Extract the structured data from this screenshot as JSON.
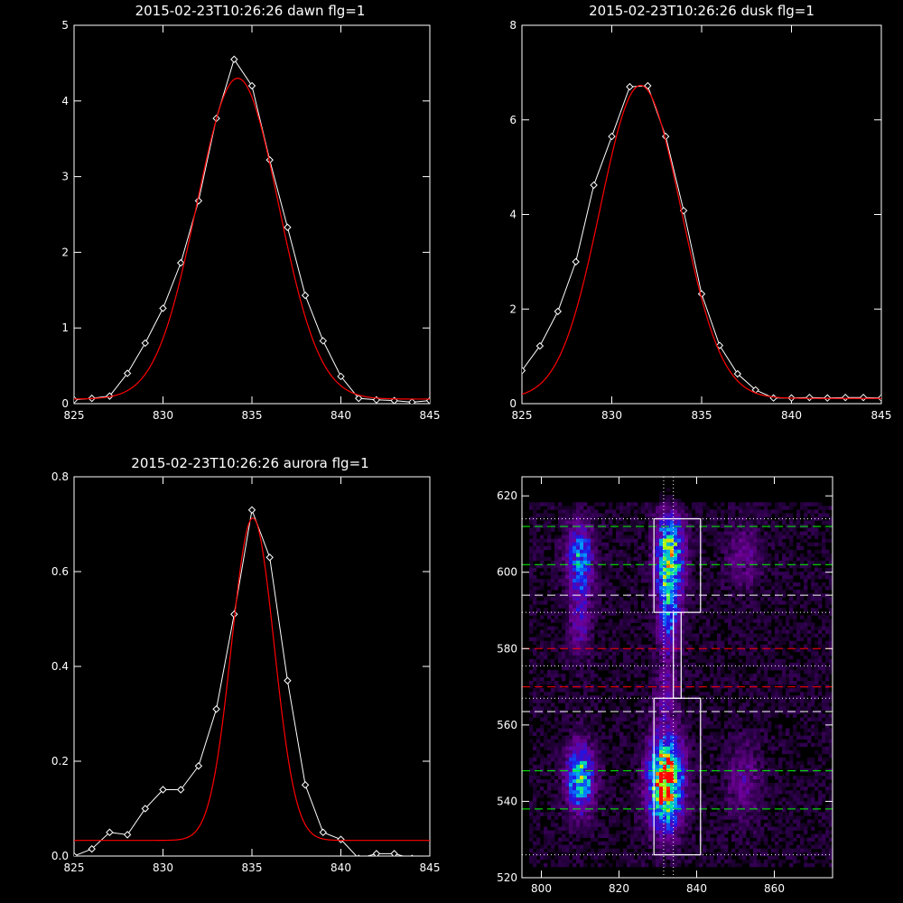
{
  "chart_data": [
    {
      "type": "line",
      "title": "2015-02-23T10:26:26 dawn flg=1",
      "xlabel": "",
      "ylabel": "",
      "xlim": [
        825,
        845
      ],
      "ylim": [
        0,
        5
      ],
      "xticks": [
        "825",
        "830",
        "835",
        "840",
        "845"
      ],
      "yticks": [
        "0",
        "1",
        "2",
        "3",
        "4",
        "5"
      ],
      "grid": false,
      "series": [
        {
          "color": "#ffffff",
          "marker": "diamond",
          "x": [
            825,
            826,
            827,
            828,
            829,
            830,
            831,
            832,
            833,
            834,
            835,
            836,
            837,
            838,
            839,
            840,
            841,
            842,
            843,
            844,
            845
          ],
          "y": [
            0.05,
            0.07,
            0.1,
            0.4,
            0.8,
            1.26,
            1.86,
            2.68,
            3.77,
            4.55,
            4.2,
            3.22,
            2.33,
            1.43,
            0.83,
            0.36,
            0.07,
            0.05,
            0.04,
            0.02,
            0.04
          ]
        },
        {
          "color": "#ff0000",
          "kind": "gaussian-fit",
          "amplitude": 4.24,
          "center": 834.2,
          "sigma": 2.3,
          "offset": 0.06
        }
      ]
    },
    {
      "type": "line",
      "title": "2015-02-23T10:26:26 dusk flg=1",
      "xlabel": "",
      "ylabel": "",
      "xlim": [
        825,
        845
      ],
      "ylim": [
        0,
        8
      ],
      "xticks": [
        "825",
        "830",
        "835",
        "840",
        "845"
      ],
      "yticks": [
        "0",
        "2",
        "4",
        "6",
        "8"
      ],
      "grid": false,
      "series": [
        {
          "color": "#ffffff",
          "marker": "diamond",
          "x": [
            825,
            826,
            827,
            828,
            829,
            830,
            831,
            832,
            833,
            834,
            835,
            836,
            837,
            838,
            839,
            840,
            841,
            842,
            843,
            844,
            845
          ],
          "y": [
            0.7,
            1.22,
            1.95,
            3.0,
            4.62,
            5.65,
            6.7,
            6.72,
            5.65,
            4.08,
            2.32,
            1.23,
            0.63,
            0.29,
            0.12,
            0.12,
            0.13,
            0.12,
            0.13,
            0.13,
            0.12
          ]
        },
        {
          "color": "#ff0000",
          "kind": "gaussian-fit",
          "amplitude": 6.62,
          "center": 831.6,
          "sigma": 2.25,
          "offset": 0.11
        }
      ]
    },
    {
      "type": "line",
      "title": "2015-02-23T10:26:26 aurora flg=1",
      "xlabel": "",
      "ylabel": "",
      "xlim": [
        825,
        845
      ],
      "ylim": [
        0,
        0.8
      ],
      "xticks": [
        "825",
        "830",
        "835",
        "840",
        "845"
      ],
      "yticks": [
        "0.0",
        "0.2",
        "0.4",
        "0.6",
        "0.8"
      ],
      "grid": false,
      "series": [
        {
          "color": "#ffffff",
          "marker": "diamond",
          "x": [
            825,
            826,
            827,
            828,
            829,
            830,
            831,
            832,
            833,
            834,
            835,
            836,
            837,
            838,
            839,
            840,
            841,
            842,
            843,
            844
          ],
          "y": [
            0.0,
            0.015,
            0.05,
            0.045,
            0.1,
            0.14,
            0.14,
            0.19,
            0.31,
            0.51,
            0.73,
            0.63,
            0.37,
            0.15,
            0.05,
            0.035,
            -0.005,
            0.005,
            0.005,
            -0.005
          ]
        },
        {
          "color": "#ff0000",
          "kind": "gaussian-fit",
          "amplitude": 0.68,
          "center": 835.05,
          "sigma": 1.2,
          "offset": 0.033
        }
      ]
    },
    {
      "type": "heatmap",
      "title": "",
      "xlabel": "",
      "ylabel": "",
      "xlim": [
        795,
        875
      ],
      "ylim": [
        520,
        625
      ],
      "xticks": [
        "800",
        "820",
        "840",
        "860"
      ],
      "yticks": [
        "520",
        "540",
        "560",
        "580",
        "600",
        "620"
      ],
      "colormap": "rainbow-on-black",
      "emission_blobs": [
        {
          "x": 810,
          "y": 546,
          "sx": 2.5,
          "sy": 6,
          "amp": 0.65
        },
        {
          "x": 832,
          "y": 545,
          "sx": 3,
          "sy": 8,
          "amp": 1.0
        },
        {
          "x": 810,
          "y": 604,
          "sx": 2.5,
          "sy": 6,
          "amp": 0.5
        },
        {
          "x": 833,
          "y": 605,
          "sx": 2.5,
          "sy": 7,
          "amp": 0.7
        },
        {
          "x": 833,
          "y": 590,
          "sx": 2,
          "sy": 8,
          "amp": 0.45
        },
        {
          "x": 810,
          "y": 588,
          "sx": 2,
          "sy": 7,
          "amp": 0.25
        },
        {
          "x": 852,
          "y": 545,
          "sx": 3,
          "sy": 7,
          "amp": 0.2
        },
        {
          "x": 852,
          "y": 604,
          "sx": 3,
          "sy": 6,
          "amp": 0.18
        },
        {
          "x": 832,
          "y": 568,
          "sx": 2,
          "sy": 6,
          "amp": 0.2
        }
      ],
      "hlines": [
        {
          "y": 612,
          "color": "#00ff00",
          "style": "dashed"
        },
        {
          "y": 602,
          "color": "#00ff00",
          "style": "dashed"
        },
        {
          "y": 594,
          "color": "#ffffff",
          "style": "dashed"
        },
        {
          "y": 580,
          "color": "#ff0000",
          "style": "dashed"
        },
        {
          "y": 570,
          "color": "#ff0000",
          "style": "dashed"
        },
        {
          "y": 563.5,
          "color": "#ffffff",
          "style": "dashed"
        },
        {
          "y": 548,
          "color": "#00ff00",
          "style": "dashed"
        },
        {
          "y": 538,
          "color": "#00ff00",
          "style": "dashed"
        },
        {
          "y": 614,
          "color": "#ffffff",
          "style": "dotted"
        },
        {
          "y": 589.5,
          "color": "#ffffff",
          "style": "dotted"
        },
        {
          "y": 575.5,
          "color": "#ffffff",
          "style": "dotted"
        },
        {
          "y": 567,
          "color": "#ffffff",
          "style": "dotted"
        },
        {
          "y": 526,
          "color": "#ffffff",
          "style": "dotted"
        }
      ],
      "vlines": [
        {
          "x": 831.5,
          "color": "#ffffff",
          "style": "dotted"
        },
        {
          "x": 834,
          "color": "#ffffff",
          "style": "dotted"
        }
      ],
      "boxes": [
        {
          "x0": 829,
          "x1": 841,
          "y0": 589.5,
          "y1": 614
        },
        {
          "x0": 829,
          "x1": 841,
          "y0": 526,
          "y1": 567
        },
        {
          "x0": 834,
          "x1": 836,
          "y0": 567,
          "y1": 589.5
        }
      ]
    }
  ]
}
